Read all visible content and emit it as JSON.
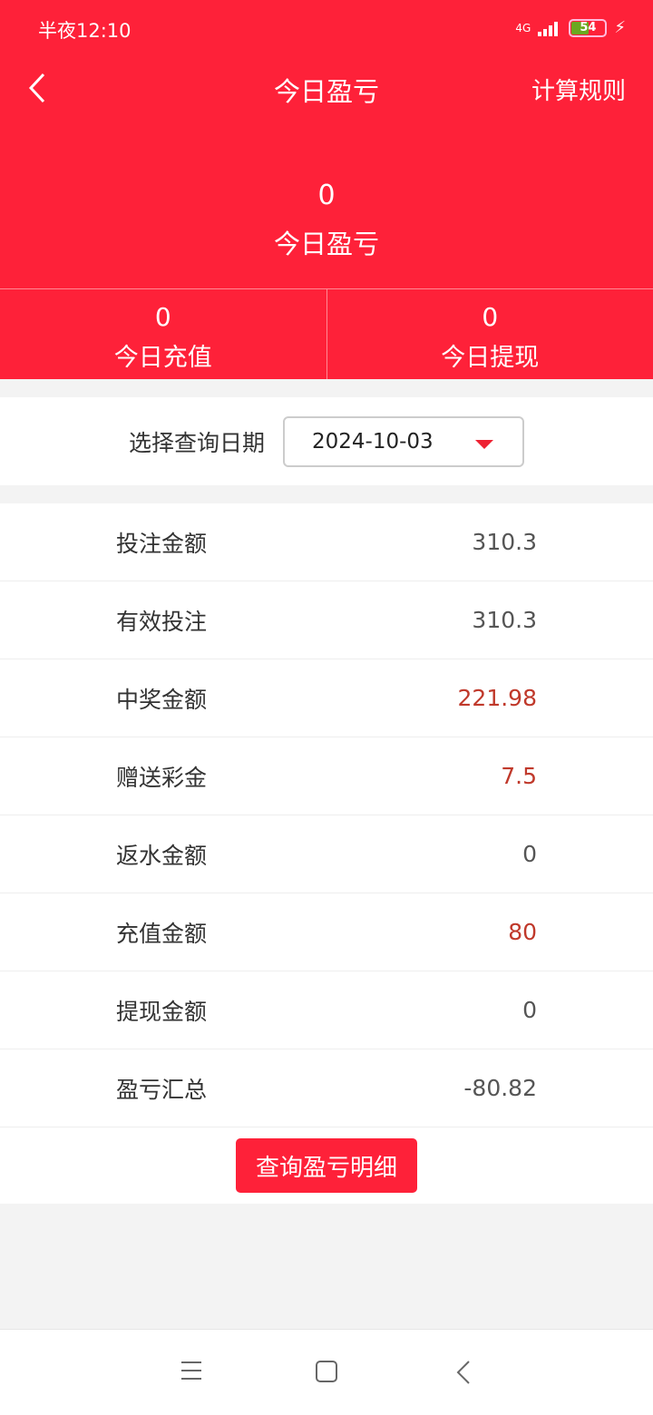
{
  "status": {
    "time": "半夜12:10",
    "network": "4G",
    "battery": "54"
  },
  "nav": {
    "title": "今日盈亏",
    "right": "计算规则"
  },
  "summary": {
    "value": "0",
    "label": "今日盈亏"
  },
  "stats": [
    {
      "value": "0",
      "label": "今日充值"
    },
    {
      "value": "0",
      "label": "今日提现"
    }
  ],
  "date": {
    "label": "选择查询日期",
    "value": "2024-10-03"
  },
  "rows": [
    {
      "label": "投注金额",
      "value": "310.3",
      "red": false
    },
    {
      "label": "有效投注",
      "value": "310.3",
      "red": false
    },
    {
      "label": "中奖金额",
      "value": "221.98",
      "red": true
    },
    {
      "label": "赠送彩金",
      "value": "7.5",
      "red": true
    },
    {
      "label": "返水金额",
      "value": "0",
      "red": false
    },
    {
      "label": "充值金额",
      "value": "80",
      "red": true
    },
    {
      "label": "提现金额",
      "value": "0",
      "red": false
    },
    {
      "label": "盈亏汇总",
      "value": "-80.82",
      "red": false
    }
  ],
  "button": "查询盈亏明细",
  "colors": {
    "brand": "#fe2139",
    "highlight": "#c0392b"
  }
}
